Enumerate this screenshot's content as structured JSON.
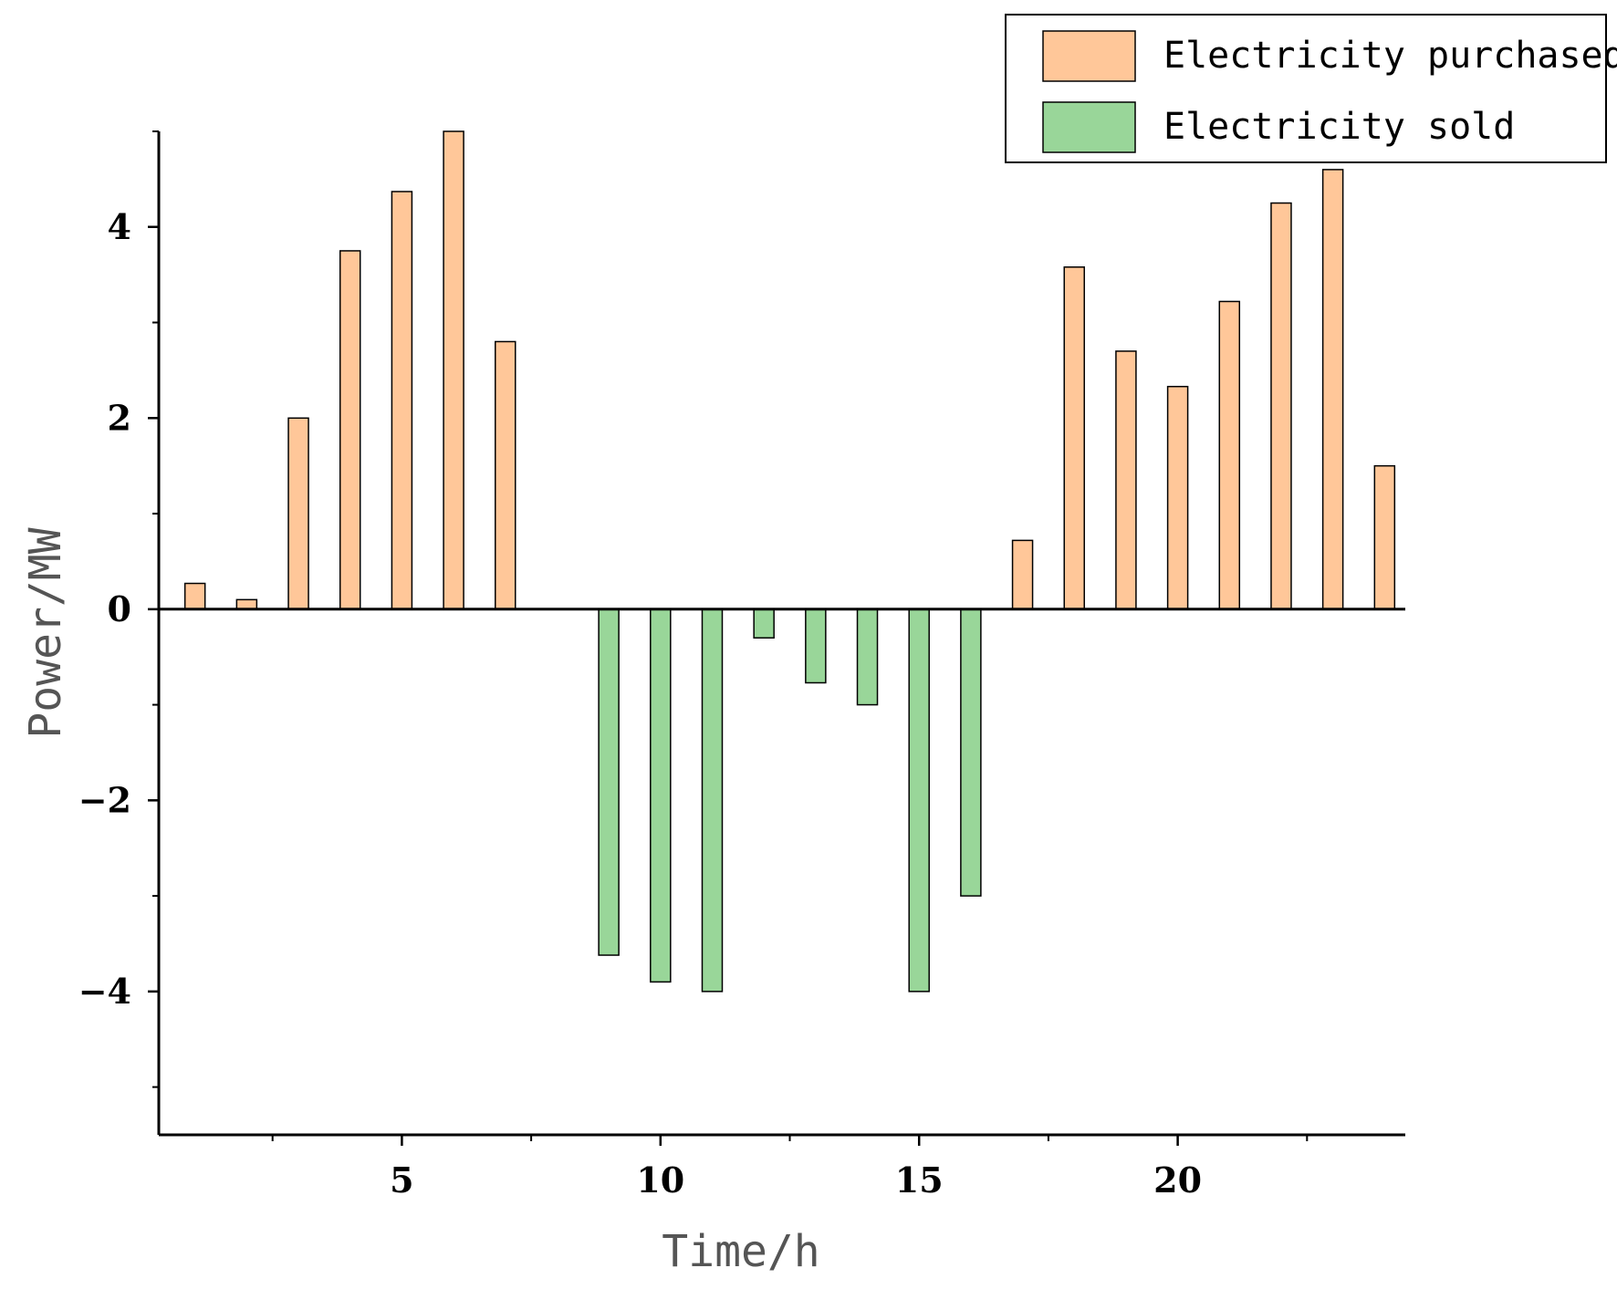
{
  "chart_data": {
    "type": "bar",
    "title": "",
    "xlabel": "Time/h",
    "ylabel": "Power/MW",
    "x": [
      1,
      2,
      3,
      4,
      5,
      6,
      7,
      8,
      9,
      10,
      11,
      12,
      13,
      14,
      15,
      16,
      17,
      18,
      19,
      20,
      21,
      22,
      23,
      24
    ],
    "xlim": [
      0.3,
      24.4
    ],
    "ylim": [
      -5.5,
      5.0
    ],
    "xticks_labeled": [
      5,
      10,
      15,
      20
    ],
    "xticks_minor": [
      2.5,
      7.5,
      12.5,
      17.5,
      22.5
    ],
    "yticks_labeled": [
      -4,
      -2,
      0,
      2,
      4
    ],
    "yticks_minor": [
      -5,
      -3,
      -1,
      1,
      3,
      5
    ],
    "grid": false,
    "legend_position": "top-right",
    "series": [
      {
        "name": "Electricity purchased",
        "color": "#FFC799",
        "values": [
          0.27,
          0.1,
          2.0,
          3.75,
          4.37,
          5.0,
          2.8,
          0,
          0,
          0,
          0,
          0,
          0,
          0,
          0,
          0,
          0.72,
          3.58,
          2.7,
          2.33,
          3.22,
          4.25,
          4.6,
          1.5
        ]
      },
      {
        "name": "Electricity sold",
        "color": "#99D699",
        "values": [
          0,
          0,
          0,
          0,
          0,
          0,
          0,
          0,
          -3.62,
          -3.9,
          -4.0,
          -0.3,
          -0.77,
          -1.0,
          -4.0,
          -3.0,
          0,
          0,
          0,
          0,
          0,
          0,
          0,
          0
        ]
      }
    ]
  }
}
